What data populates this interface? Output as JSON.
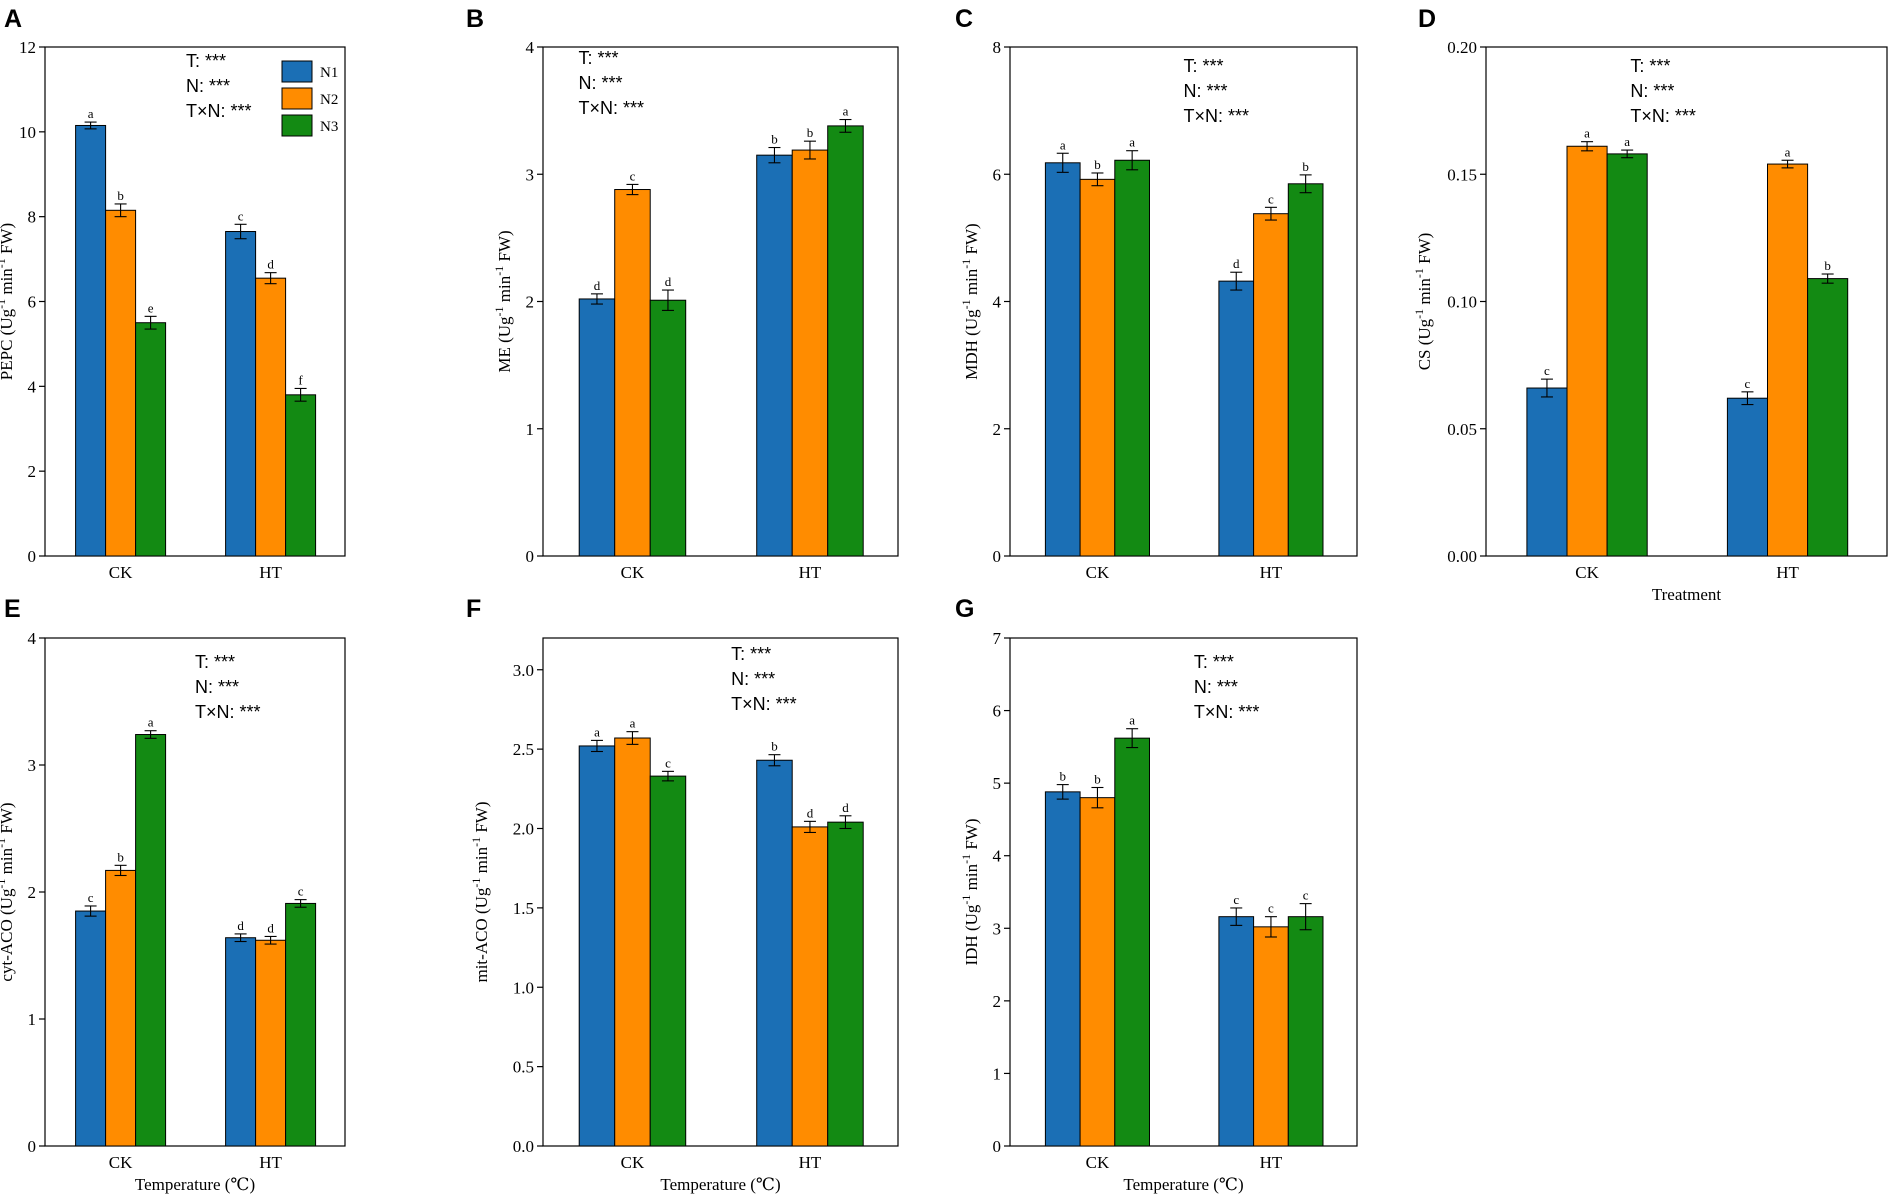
{
  "colors": {
    "N1": "#1b6fb5",
    "N2": "#ff8c00",
    "N3": "#138a13"
  },
  "chart_data": [
    {
      "panel": "A",
      "type": "bar",
      "ylabel": "PEPC (Ug",
      "ysup": "-1",
      "ymid": " min",
      "ysup2": "-1",
      "yend": " FW)",
      "xlabel": "",
      "ylim": [
        0,
        12
      ],
      "yticks": [
        "0",
        "2",
        "4",
        "6",
        "8",
        "10",
        "12"
      ],
      "categories": [
        "CK",
        "HT"
      ],
      "series": [
        {
          "name": "N1",
          "values": [
            10.15,
            7.65
          ],
          "errors": [
            0.08,
            0.17
          ],
          "letters": [
            "a",
            "c"
          ]
        },
        {
          "name": "N2",
          "values": [
            8.15,
            6.55
          ],
          "errors": [
            0.15,
            0.13
          ],
          "letters": [
            "b",
            "d"
          ]
        },
        {
          "name": "N3",
          "values": [
            5.5,
            3.8
          ],
          "errors": [
            0.15,
            0.15
          ],
          "letters": [
            "e",
            "f"
          ]
        }
      ],
      "stats": [
        "T: ***",
        "N: ***",
        "T×N: ***"
      ],
      "legend": [
        "N1",
        "N2",
        "N3"
      ]
    },
    {
      "panel": "B",
      "type": "bar",
      "ylabel": "ME (Ug",
      "ysup": "-1",
      "ymid": " min",
      "ysup2": "-1",
      "yend": " FW)",
      "xlabel": "",
      "ylim": [
        0,
        4
      ],
      "yticks": [
        "0",
        "1",
        "2",
        "3",
        "4"
      ],
      "categories": [
        "CK",
        "HT"
      ],
      "series": [
        {
          "name": "N1",
          "values": [
            2.02,
            3.15
          ],
          "errors": [
            0.04,
            0.06
          ],
          "letters": [
            "d",
            "b"
          ]
        },
        {
          "name": "N2",
          "values": [
            2.88,
            3.19
          ],
          "errors": [
            0.04,
            0.07
          ],
          "letters": [
            "c",
            "b"
          ]
        },
        {
          "name": "N3",
          "values": [
            2.01,
            3.38
          ],
          "errors": [
            0.08,
            0.05
          ],
          "letters": [
            "d",
            "a"
          ]
        }
      ],
      "stats": [
        "T: ***",
        "N: ***",
        "T×N: ***"
      ]
    },
    {
      "panel": "C",
      "type": "bar",
      "ylabel": "MDH (Ug",
      "ysup": "-1",
      "ymid": " min",
      "ysup2": "-1",
      "yend": " FW)",
      "xlabel": "",
      "ylim": [
        0,
        8
      ],
      "yticks": [
        "0",
        "2",
        "4",
        "6",
        "8"
      ],
      "categories": [
        "CK",
        "HT"
      ],
      "series": [
        {
          "name": "N1",
          "values": [
            6.18,
            4.32
          ],
          "errors": [
            0.15,
            0.14
          ],
          "letters": [
            "a",
            "d"
          ]
        },
        {
          "name": "N2",
          "values": [
            5.92,
            5.38
          ],
          "errors": [
            0.1,
            0.1
          ],
          "letters": [
            "b",
            "c"
          ]
        },
        {
          "name": "N3",
          "values": [
            6.22,
            5.85
          ],
          "errors": [
            0.15,
            0.14
          ],
          "letters": [
            "a",
            "b"
          ]
        }
      ],
      "stats": [
        "T: ***",
        "N: ***",
        "T×N: ***"
      ]
    },
    {
      "panel": "D",
      "type": "bar",
      "ylabel": "CS (Ug",
      "ysup": "-1",
      "ymid": " min",
      "ysup2": "-1",
      "yend": " FW)",
      "xlabel": "Treatment",
      "ylim": [
        0,
        0.2
      ],
      "yticks": [
        "0.00",
        "0.05",
        "0.10",
        "0.15",
        "0.20"
      ],
      "categories": [
        "CK",
        "HT"
      ],
      "series": [
        {
          "name": "N1",
          "values": [
            0.066,
            0.062
          ],
          "errors": [
            0.0035,
            0.0025
          ],
          "letters": [
            "c",
            "c"
          ]
        },
        {
          "name": "N2",
          "values": [
            0.161,
            0.154
          ],
          "errors": [
            0.0018,
            0.0015
          ],
          "letters": [
            "a",
            "a"
          ]
        },
        {
          "name": "N3",
          "values": [
            0.158,
            0.109
          ],
          "errors": [
            0.0015,
            0.0018
          ],
          "letters": [
            "a",
            "b"
          ]
        }
      ],
      "stats": [
        "T: ***",
        "N: ***",
        "T×N: ***"
      ]
    },
    {
      "panel": "E",
      "type": "bar",
      "ylabel": "cyt-ACO (Ug",
      "ysup": "-1",
      "ymid": " min",
      "ysup2": "-1",
      "yend": " FW)",
      "xlabel": "Temperature (℃)",
      "ylim": [
        0,
        4
      ],
      "yticks": [
        "0",
        "1",
        "2",
        "3",
        "4"
      ],
      "categories": [
        "CK",
        "HT"
      ],
      "series": [
        {
          "name": "N1",
          "values": [
            1.85,
            1.64
          ],
          "errors": [
            0.04,
            0.03
          ],
          "letters": [
            "c",
            "d"
          ]
        },
        {
          "name": "N2",
          "values": [
            2.17,
            1.62
          ],
          "errors": [
            0.04,
            0.03
          ],
          "letters": [
            "b",
            "d"
          ]
        },
        {
          "name": "N3",
          "values": [
            3.24,
            1.91
          ],
          "errors": [
            0.03,
            0.03
          ],
          "letters": [
            "a",
            "c"
          ]
        }
      ],
      "stats": [
        "T: ***",
        "N: ***",
        "T×N: ***"
      ]
    },
    {
      "panel": "F",
      "type": "bar",
      "ylabel": "mit-ACO (Ug",
      "ysup": "-1",
      "ymid": " min",
      "ysup2": "-1",
      "yend": " FW)",
      "xlabel": "Temperature (℃)",
      "ylim": [
        0,
        3.2
      ],
      "yticks": [
        "0.0",
        "0.5",
        "1.0",
        "1.5",
        "2.0",
        "2.5",
        "3.0"
      ],
      "categories": [
        "CK",
        "HT"
      ],
      "series": [
        {
          "name": "N1",
          "values": [
            2.52,
            2.43
          ],
          "errors": [
            0.035,
            0.035
          ],
          "letters": [
            "a",
            "b"
          ]
        },
        {
          "name": "N2",
          "values": [
            2.57,
            2.01
          ],
          "errors": [
            0.04,
            0.035
          ],
          "letters": [
            "a",
            "d"
          ]
        },
        {
          "name": "N3",
          "values": [
            2.33,
            2.04
          ],
          "errors": [
            0.03,
            0.04
          ],
          "letters": [
            "c",
            "d"
          ]
        }
      ],
      "stats": [
        "T: ***",
        "N: ***",
        "T×N: ***"
      ]
    },
    {
      "panel": "G",
      "type": "bar",
      "ylabel": "IDH (Ug",
      "ysup": "-1",
      "ymid": " min",
      "ysup2": "-1",
      "yend": " FW)",
      "xlabel": "Temperature (℃)",
      "ylim": [
        0,
        7
      ],
      "yticks": [
        "0",
        "1",
        "2",
        "3",
        "4",
        "5",
        "6",
        "7"
      ],
      "categories": [
        "CK",
        "HT"
      ],
      "series": [
        {
          "name": "N1",
          "values": [
            4.88,
            3.16
          ],
          "errors": [
            0.1,
            0.12
          ],
          "letters": [
            "b",
            "c"
          ]
        },
        {
          "name": "N2",
          "values": [
            4.8,
            3.02
          ],
          "errors": [
            0.14,
            0.14
          ],
          "letters": [
            "b",
            "c"
          ]
        },
        {
          "name": "N3",
          "values": [
            5.62,
            3.16
          ],
          "errors": [
            0.13,
            0.18
          ],
          "letters": [
            "a",
            "c"
          ]
        }
      ],
      "stats": [
        "T: ***",
        "N: ***",
        "T×N: ***"
      ]
    }
  ]
}
